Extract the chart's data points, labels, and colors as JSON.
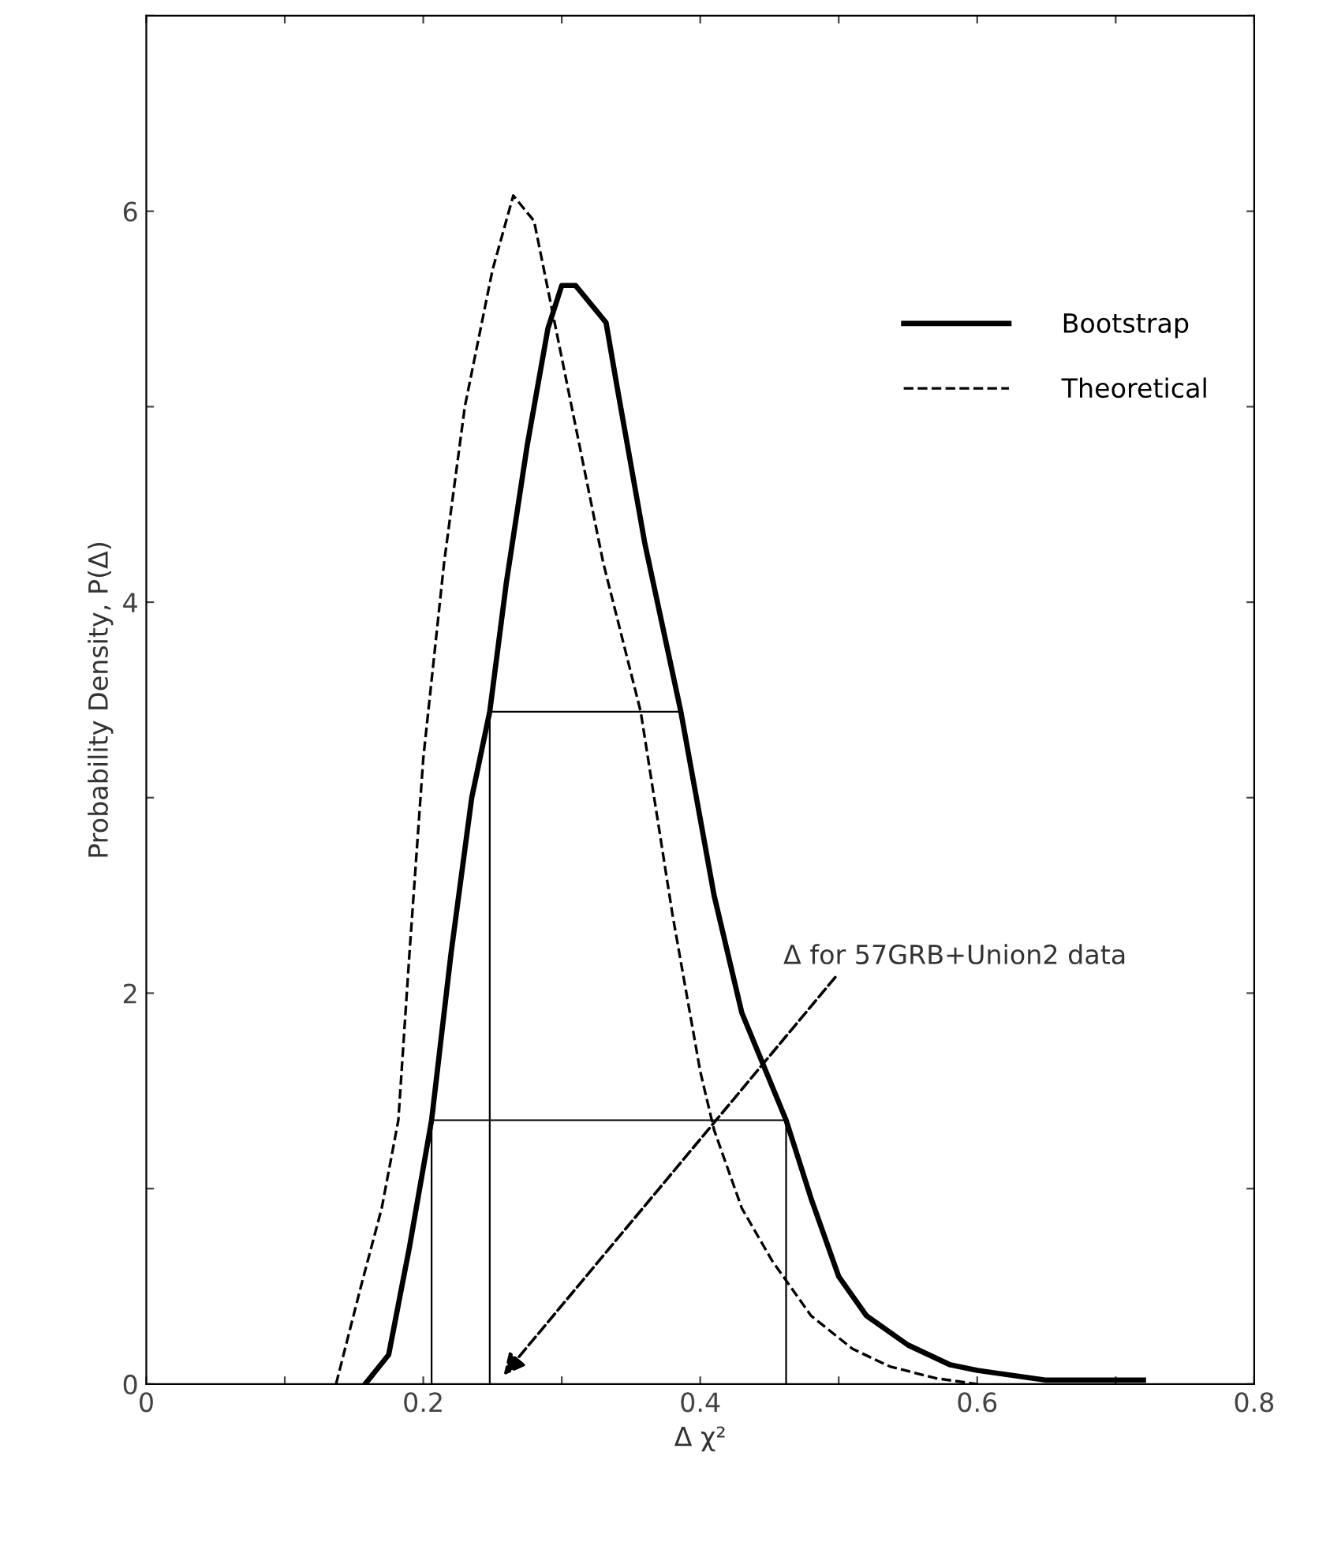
{
  "chart_data": {
    "type": "line",
    "xlabel": "Δ χ²",
    "ylabel": "Probability Density, P(Δ)",
    "xlim": [
      0,
      0.8
    ],
    "ylim": [
      0,
      7
    ],
    "xticks": [
      0,
      {
        "value": 0.1,
        "label": null
      },
      0.2,
      {
        "value": 0.3,
        "label": null
      },
      0.4,
      {
        "value": 0.5,
        "label": null
      },
      0.6,
      {
        "value": 0.7,
        "label": null
      },
      0.8
    ],
    "yticks": [
      0,
      {
        "value": 1,
        "label": null
      },
      2,
      {
        "value": 3,
        "label": null
      },
      4,
      {
        "value": 5,
        "label": null
      },
      6,
      {
        "value": 7,
        "label": null
      }
    ],
    "grid": false,
    "legend": "right",
    "marker": "none",
    "series": [
      {
        "name": "Bootstrap",
        "color": "#000000",
        "line_style": "solid",
        "x": [
          0.158,
          0.175,
          0.19,
          0.206,
          0.22,
          0.235,
          0.248,
          0.26,
          0.275,
          0.29,
          0.3,
          0.31,
          0.332,
          0.34,
          0.36,
          0.386,
          0.41,
          0.43,
          0.462,
          0.48,
          0.5,
          0.52,
          0.55,
          0.58,
          0.6,
          0.62,
          0.65,
          0.7,
          0.72
        ],
        "values": [
          0,
          0.15,
          0.7,
          1.35,
          2.2,
          3.0,
          3.44,
          4.1,
          4.8,
          5.4,
          5.62,
          5.62,
          5.43,
          5.1,
          4.3,
          3.44,
          2.5,
          1.9,
          1.35,
          0.95,
          0.55,
          0.35,
          0.2,
          0.1,
          0.07,
          0.05,
          0.02,
          0.02,
          0.02
        ]
      },
      {
        "name": "Theoretical",
        "color": "#000000",
        "line_style": "dashed",
        "x": [
          0.137,
          0.155,
          0.17,
          0.182,
          0.19,
          0.2,
          0.215,
          0.23,
          0.25,
          0.265,
          0.28,
          0.29,
          0.31,
          0.33,
          0.357,
          0.38,
          0.4,
          0.41,
          0.43,
          0.452,
          0.48,
          0.51,
          0.537,
          0.57,
          0.6
        ],
        "values": [
          0,
          0.5,
          0.9,
          1.35,
          2.2,
          3.2,
          4.2,
          5.0,
          5.7,
          6.08,
          5.95,
          5.6,
          4.9,
          4.2,
          3.44,
          2.4,
          1.6,
          1.3,
          0.9,
          0.63,
          0.35,
          0.18,
          0.09,
          0.03,
          0
        ]
      },
      {
        "color": "#000000",
        "line_style": "solid",
        "x": [
          0.206,
          0.206,
          0.462,
          0.462
        ],
        "values": [
          0,
          1.35,
          1.35,
          0
        ]
      },
      {
        "color": "#000000",
        "line_style": "solid",
        "x": [
          0.248,
          0.248,
          0.386
        ],
        "values": [
          0,
          3.44,
          3.44
        ]
      }
    ],
    "annotations": [
      "Δ for 57GRB+Union2 data"
    ]
  }
}
